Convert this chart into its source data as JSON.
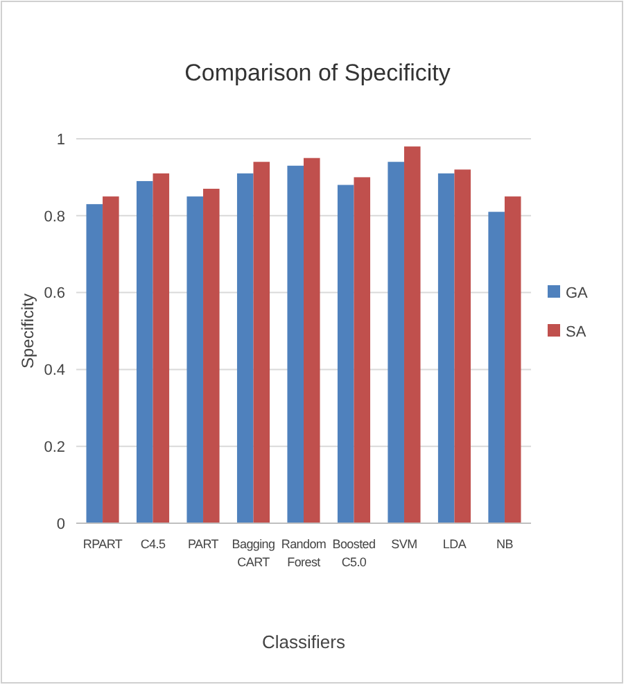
{
  "chart_data": {
    "type": "bar",
    "title": "Comparison of Specificity",
    "xlabel": "Classifiers",
    "ylabel": "Specificity",
    "categories": [
      "RPART",
      "C4.5",
      "PART",
      "Bagging CART",
      "Random Forest",
      "Boosted C5.0",
      "SVM",
      "LDA",
      "NB"
    ],
    "series": [
      {
        "name": "GA",
        "color": "#4f81bd",
        "values": [
          0.83,
          0.89,
          0.85,
          0.91,
          0.93,
          0.88,
          0.94,
          0.91,
          0.81
        ]
      },
      {
        "name": "SA",
        "color": "#c0504d",
        "values": [
          0.85,
          0.91,
          0.87,
          0.94,
          0.95,
          0.9,
          0.98,
          0.92,
          0.85
        ]
      }
    ],
    "ylim": [
      0,
      1
    ],
    "yticks": [
      0,
      0.2,
      0.4,
      0.6,
      0.8,
      1
    ],
    "grid": "y",
    "legend": "right"
  }
}
